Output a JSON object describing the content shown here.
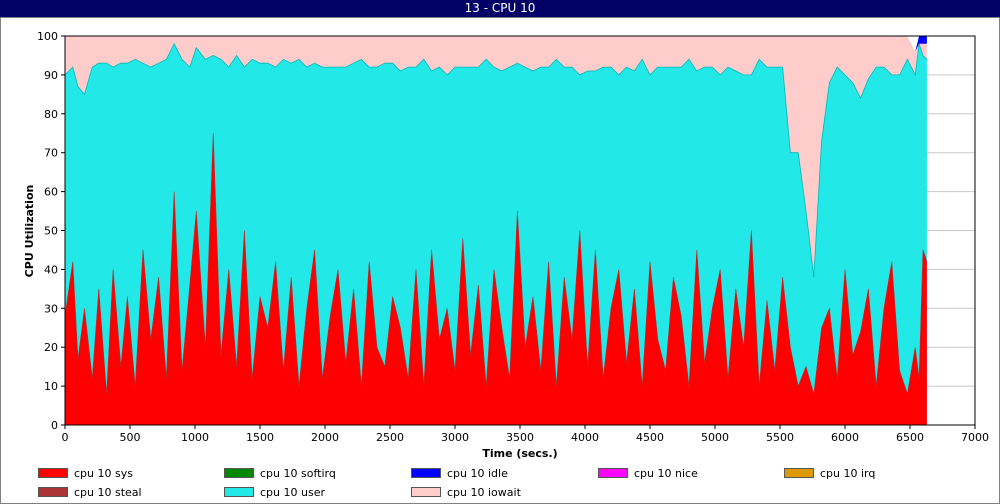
{
  "window": {
    "title": "13 - CPU 10"
  },
  "chart_data": {
    "type": "area",
    "stacked": true,
    "title": "13 - CPU 10",
    "xlabel": "Time (secs.)",
    "ylabel": "CPU Utilization",
    "xlim": [
      0,
      7000
    ],
    "ylim": [
      0,
      100
    ],
    "xticks": [
      "0",
      "500",
      "1000",
      "1500",
      "2000",
      "2500",
      "3000",
      "3500",
      "4000",
      "4500",
      "5000",
      "5500",
      "6000",
      "6500",
      "7000"
    ],
    "yticks": [
      "0",
      "10",
      "20",
      "30",
      "40",
      "50",
      "60",
      "70",
      "80",
      "90",
      "100"
    ],
    "grid": "horizontal",
    "legend_position": "bottom",
    "series_order": [
      "cpu 10 sys",
      "cpu 10 softirq",
      "cpu 10 idle",
      "cpu 10 nice",
      "cpu 10 irq",
      "cpu 10 steal",
      "cpu 10 user",
      "cpu 10 iowait"
    ],
    "colors": {
      "cpu 10 sys": "#ff0000",
      "cpu 10 softirq": "#008800",
      "cpu 10 idle": "#0000ff",
      "cpu 10 nice": "#ff00ff",
      "cpu 10 irq": "#dd9900",
      "cpu 10 steal": "#aa3333",
      "cpu 10 user": "#22e8e8",
      "cpu 10 iowait": "#ffcccc"
    },
    "time_points": [
      0,
      60,
      100,
      150,
      210,
      260,
      320,
      370,
      430,
      480,
      540,
      600,
      660,
      720,
      780,
      840,
      900,
      960,
      1010,
      1080,
      1140,
      1200,
      1260,
      1320,
      1380,
      1440,
      1500,
      1560,
      1620,
      1680,
      1740,
      1800,
      1860,
      1920,
      1980,
      2040,
      2100,
      2160,
      2220,
      2280,
      2340,
      2400,
      2460,
      2520,
      2580,
      2640,
      2700,
      2760,
      2820,
      2880,
      2940,
      3000,
      3060,
      3120,
      3180,
      3240,
      3300,
      3360,
      3420,
      3480,
      3540,
      3600,
      3660,
      3720,
      3780,
      3840,
      3900,
      3960,
      4020,
      4080,
      4140,
      4200,
      4260,
      4320,
      4380,
      4440,
      4500,
      4560,
      4620,
      4680,
      4740,
      4800,
      4860,
      4920,
      4980,
      5040,
      5100,
      5160,
      5220,
      5280,
      5340,
      5400,
      5460,
      5520,
      5580,
      5640,
      5700,
      5760,
      5820,
      5880,
      5940,
      6000,
      6060,
      6120,
      6180,
      6240,
      6300,
      6360,
      6420,
      6480,
      6540,
      6570,
      6600,
      6630
    ],
    "sys_pct": [
      28,
      42,
      17,
      30,
      12,
      35,
      8,
      40,
      15,
      33,
      10,
      45,
      22,
      38,
      12,
      60,
      14,
      36,
      55,
      20,
      75,
      18,
      40,
      15,
      50,
      12,
      33,
      25,
      42,
      14,
      38,
      10,
      30,
      45,
      12,
      28,
      40,
      16,
      35,
      10,
      42,
      20,
      15,
      33,
      25,
      12,
      40,
      10,
      45,
      22,
      30,
      14,
      48,
      18,
      36,
      10,
      40,
      25,
      12,
      55,
      20,
      33,
      14,
      42,
      10,
      38,
      22,
      50,
      15,
      45,
      12,
      30,
      40,
      16,
      35,
      10,
      42,
      22,
      14,
      38,
      28,
      10,
      45,
      16,
      30,
      40,
      12,
      35,
      20,
      50,
      10,
      32,
      14,
      38,
      20,
      10,
      15,
      8,
      25,
      30,
      12,
      40,
      18,
      24,
      35,
      10,
      30,
      42,
      14,
      8,
      20,
      12,
      45,
      42
    ],
    "user_pct": [
      62,
      50,
      70,
      55,
      80,
      58,
      85,
      52,
      78,
      60,
      84,
      48,
      70,
      55,
      82,
      38,
      80,
      56,
      42,
      74,
      20,
      76,
      52,
      80,
      42,
      82,
      60,
      68,
      50,
      80,
      55,
      84,
      62,
      48,
      80,
      64,
      52,
      76,
      58,
      84,
      50,
      72,
      78,
      60,
      66,
      80,
      52,
      84,
      46,
      70,
      60,
      78,
      44,
      74,
      56,
      84,
      52,
      66,
      80,
      38,
      72,
      58,
      78,
      50,
      84,
      54,
      70,
      40,
      76,
      46,
      80,
      62,
      50,
      76,
      56,
      84,
      48,
      70,
      78,
      54,
      64,
      84,
      46,
      76,
      62,
      50,
      80,
      56,
      70,
      40,
      84,
      60,
      78,
      54,
      50,
      60,
      40,
      30,
      48,
      58,
      80,
      50,
      70,
      60,
      54,
      82,
      62,
      48,
      76,
      86,
      70,
      86,
      50,
      52
    ],
    "iowait_pct": [
      10,
      8,
      13,
      15,
      8,
      7,
      7,
      8,
      7,
      7,
      6,
      7,
      8,
      7,
      6,
      2,
      6,
      8,
      3,
      6,
      5,
      6,
      8,
      5,
      8,
      6,
      7,
      7,
      8,
      6,
      7,
      6,
      8,
      7,
      8,
      8,
      8,
      8,
      7,
      6,
      8,
      8,
      7,
      7,
      9,
      8,
      8,
      6,
      9,
      8,
      10,
      8,
      8,
      8,
      8,
      6,
      8,
      9,
      8,
      7,
      8,
      9,
      8,
      8,
      6,
      8,
      8,
      10,
      9,
      9,
      8,
      8,
      10,
      8,
      9,
      6,
      10,
      8,
      8,
      8,
      8,
      6,
      9,
      8,
      8,
      10,
      8,
      9,
      10,
      10,
      6,
      8,
      8,
      8,
      30,
      30,
      45,
      62,
      27,
      12,
      8,
      10,
      12,
      16,
      11,
      8,
      8,
      10,
      10,
      6,
      6,
      0,
      3,
      4
    ],
    "idle_note_pct": [
      0,
      0,
      0,
      0,
      0,
      0,
      0,
      0,
      0,
      0,
      0,
      0,
      0,
      0,
      0,
      0,
      0,
      0,
      0,
      0,
      0,
      0,
      0,
      0,
      0,
      0,
      0,
      0,
      0,
      0,
      0,
      0,
      0,
      0,
      0,
      0,
      0,
      0,
      0,
      0,
      0,
      0,
      0,
      0,
      0,
      0,
      0,
      0,
      0,
      0,
      0,
      0,
      0,
      0,
      0,
      0,
      0,
      0,
      0,
      0,
      0,
      0,
      0,
      0,
      0,
      0,
      0,
      0,
      0,
      0,
      0,
      0,
      0,
      0,
      0,
      0,
      0,
      0,
      0,
      0,
      0,
      0,
      0,
      0,
      0,
      0,
      0,
      0,
      0,
      0,
      0,
      0,
      0,
      0,
      0,
      0,
      0,
      0,
      0,
      0,
      0,
      0,
      0,
      0,
      0,
      0,
      0,
      0,
      0,
      0,
      0,
      2,
      2,
      2
    ]
  },
  "legend": [
    {
      "label": "cpu 10 sys",
      "color": "#ff0000"
    },
    {
      "label": "cpu 10 softirq",
      "color": "#008800"
    },
    {
      "label": "cpu 10 idle",
      "color": "#0000ff"
    },
    {
      "label": "cpu 10 nice",
      "color": "#ff00ff"
    },
    {
      "label": "cpu 10 irq",
      "color": "#dd9900"
    },
    {
      "label": "cpu 10 steal",
      "color": "#aa3333"
    },
    {
      "label": "cpu 10 user",
      "color": "#22e8e8"
    },
    {
      "label": "cpu 10 iowait",
      "color": "#ffcccc"
    }
  ]
}
